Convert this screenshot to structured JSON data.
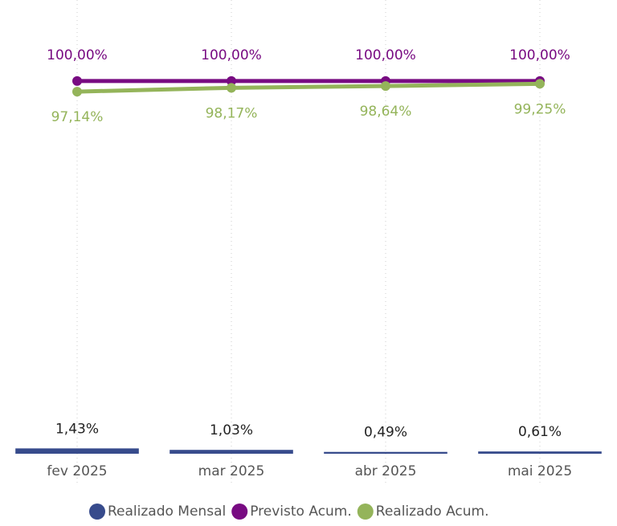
{
  "chart_data": {
    "type": "combo",
    "categories": [
      "fev 2025",
      "mar 2025",
      "abr 2025",
      "mai 2025"
    ],
    "ylim": [
      0,
      120
    ],
    "series": [
      {
        "name": "Realizado Mensal",
        "type": "bar",
        "color": "#374b8c",
        "values": [
          1.43,
          1.03,
          0.49,
          0.61
        ],
        "value_labels": [
          "1,43%",
          "1,03%",
          "0,49%",
          "0,61%"
        ]
      },
      {
        "name": "Previsto Acum.",
        "type": "line",
        "color": "#780b82",
        "values": [
          100,
          100,
          100,
          100
        ],
        "value_labels": [
          "100,00%",
          "100,00%",
          "100,00%",
          "100,00%"
        ]
      },
      {
        "name": "Realizado Acum.",
        "type": "line",
        "color": "#94b45a",
        "values": [
          97.14,
          98.17,
          98.64,
          99.25
        ],
        "value_labels": [
          "97,14%",
          "98,17%",
          "98,64%",
          "99,25%"
        ]
      }
    ]
  }
}
